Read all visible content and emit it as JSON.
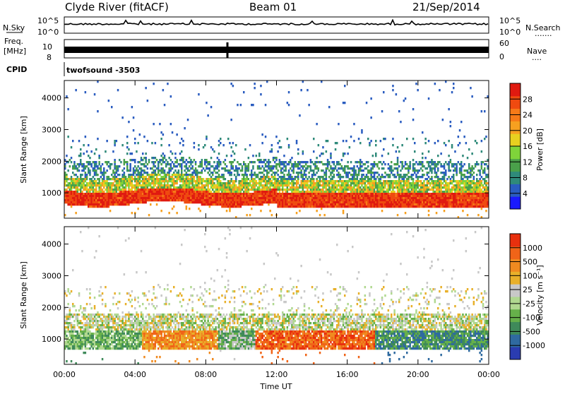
{
  "header": {
    "station": "Clyde River (fitACF)",
    "beam": "Beam 01",
    "date": "21/Sep/2014"
  },
  "strip": {
    "nsky_label": "N.Sky",
    "nsearch_label": "N.Search",
    "nsearch_dots": ".......",
    "nsky_ticks": [
      "10^5",
      "10^0"
    ],
    "nsearch_ticks": [
      "10^5",
      "10^0"
    ],
    "freq_label": "Freq.",
    "freq_unit": "[MHz]",
    "freq_ticks": [
      "10",
      "8"
    ],
    "nave_label": "Nave",
    "nave_dots": "....",
    "nave_ticks": [
      "60",
      "0"
    ],
    "cpid_label": "CPID",
    "cpid_value": "twofsound  -3503"
  },
  "chart_data": [
    {
      "type": "heatmap",
      "name": "power",
      "ylabel": "Slant Range [km]",
      "xlabel": "",
      "y_ticks": [
        "4000",
        "3000",
        "2000",
        "1000"
      ],
      "x_ticks": [
        "00:00",
        "04:00",
        "08:00",
        "12:00",
        "16:00",
        "20:00",
        "00:00"
      ],
      "colorbar": {
        "label": "Power [dB]",
        "ticks": [
          "28",
          "24",
          "20",
          "16",
          "12",
          "8",
          "4"
        ],
        "colors": [
          "#1a1aff",
          "#2a5cc0",
          "#2f8a7a",
          "#4aa04a",
          "#7fd43a",
          "#e8d020",
          "#f6a020",
          "#f77a18",
          "#ef4a10",
          "#e01a10"
        ]
      }
    },
    {
      "type": "heatmap",
      "name": "velocity",
      "ylabel": "Slant Range [km]",
      "xlabel": "Time UT",
      "y_ticks": [
        "4000",
        "3000",
        "2000",
        "1000"
      ],
      "x_ticks": [
        "00:00",
        "04:00",
        "08:00",
        "12:00",
        "16:00",
        "20:00",
        "00:00"
      ],
      "colorbar": {
        "label": "Velocity [m s⁻¹]",
        "ticks": [
          "1000",
          "500",
          "100",
          "25",
          "-25",
          "-100",
          "-500",
          "-1000"
        ],
        "colors": [
          "#2a3cb0",
          "#2f6aa0",
          "#3f8a5a",
          "#66b04a",
          "#b0d890",
          "#c8c8c8",
          "#e8b02a",
          "#f08a20",
          "#f06418",
          "#e8300e"
        ]
      }
    }
  ]
}
